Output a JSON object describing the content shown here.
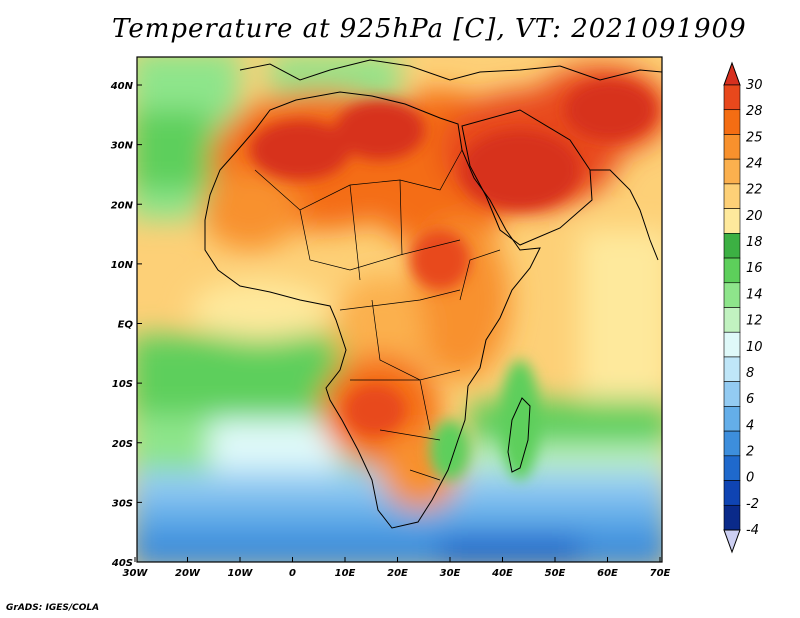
{
  "title": "Temperature at 925hPa [C], VT: 2021091909",
  "credit": "GrADS: IGES/COLA",
  "lon_labels": [
    "30W",
    "20W",
    "10W",
    "0",
    "10E",
    "20E",
    "30E",
    "40E",
    "50E",
    "60E",
    "70E"
  ],
  "lat_labels": [
    "40N",
    "30N",
    "20N",
    "10N",
    "EQ",
    "10S",
    "20S",
    "30S",
    "40S"
  ],
  "colorbar": {
    "labels": [
      "30",
      "28",
      "25",
      "24",
      "22",
      "20",
      "18",
      "16",
      "14",
      "12",
      "10",
      "8",
      "6",
      "4",
      "2",
      "0",
      "-2",
      "-4"
    ],
    "colors": [
      "#d7301f",
      "#e8481c",
      "#f46d13",
      "#f8912d",
      "#fbb04e",
      "#fdd077",
      "#fee99c",
      "#3cb043",
      "#5dcf5b",
      "#8ee58b",
      "#c1f2c0",
      "#dff9f9",
      "#bfe6f8",
      "#93cbf2",
      "#64aee9",
      "#3d8edc",
      "#1f69cc",
      "#0f44b3",
      "#0a2a8a",
      "#cccff2"
    ]
  }
}
